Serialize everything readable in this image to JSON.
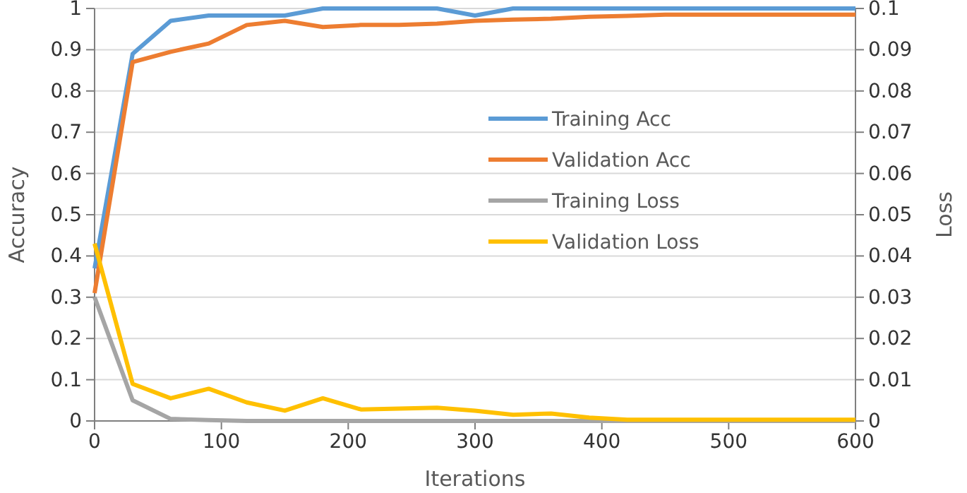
{
  "chart_data": {
    "type": "line",
    "xlabel": "Iterations",
    "ylabel": "Accuracy",
    "y2label": "Loss",
    "x": [
      0,
      30,
      60,
      90,
      120,
      150,
      180,
      210,
      240,
      270,
      300,
      330,
      360,
      390,
      420,
      450,
      480,
      510,
      540,
      570,
      600
    ],
    "series": [
      {
        "name": "Training Acc",
        "color": "#5b9bd5",
        "values": [
          0.37,
          0.89,
          0.97,
          0.983,
          0.983,
          0.983,
          1,
          1,
          1,
          1,
          0.983,
          1,
          1,
          1,
          1,
          1,
          1,
          1,
          1,
          1,
          1
        ]
      },
      {
        "name": "Validation Acc",
        "color": "#ed7d31",
        "values": [
          0.31,
          0.87,
          0.895,
          0.915,
          0.96,
          0.97,
          0.955,
          0.96,
          0.96,
          0.963,
          0.97,
          0.973,
          0.975,
          0.98,
          0.982,
          0.985,
          0.985,
          0.985,
          0.985,
          0.985,
          0.985
        ]
      },
      {
        "name": "Training Loss",
        "color": "#a5a5a5",
        "axis": "y2",
        "values": [
          0.03,
          0.005,
          0.0005,
          0.0002,
          0,
          0,
          0,
          0,
          0,
          0,
          0,
          0,
          0,
          0,
          0,
          0,
          0,
          0,
          0,
          0,
          0
        ]
      },
      {
        "name": "Validation Loss",
        "color": "#ffc000",
        "axis": "y2",
        "values": [
          0.043,
          0.009,
          0.0055,
          0.0078,
          0.0045,
          0.0025,
          0.0055,
          0.0028,
          0.003,
          0.0032,
          0.0025,
          0.0015,
          0.0018,
          0.0008,
          0.0003,
          0.0003,
          0.0003,
          0.0003,
          0.0003,
          0.0003,
          0.0003
        ]
      }
    ],
    "xlim": [
      0,
      600
    ],
    "xticks": [
      0,
      100,
      200,
      300,
      400,
      500,
      600
    ],
    "ylim": [
      0,
      1
    ],
    "yticks": [
      0,
      0.1,
      0.2,
      0.3,
      0.4,
      0.5,
      0.6,
      0.7,
      0.8,
      0.9,
      1
    ],
    "y2lim": [
      0,
      0.1
    ],
    "y2ticks": [
      0,
      0.01,
      0.02,
      0.03,
      0.04,
      0.05,
      0.06,
      0.07,
      0.08,
      0.09,
      0.1
    ],
    "grid": "y",
    "legend": "right",
    "marker": "none",
    "line_style": "solid"
  }
}
